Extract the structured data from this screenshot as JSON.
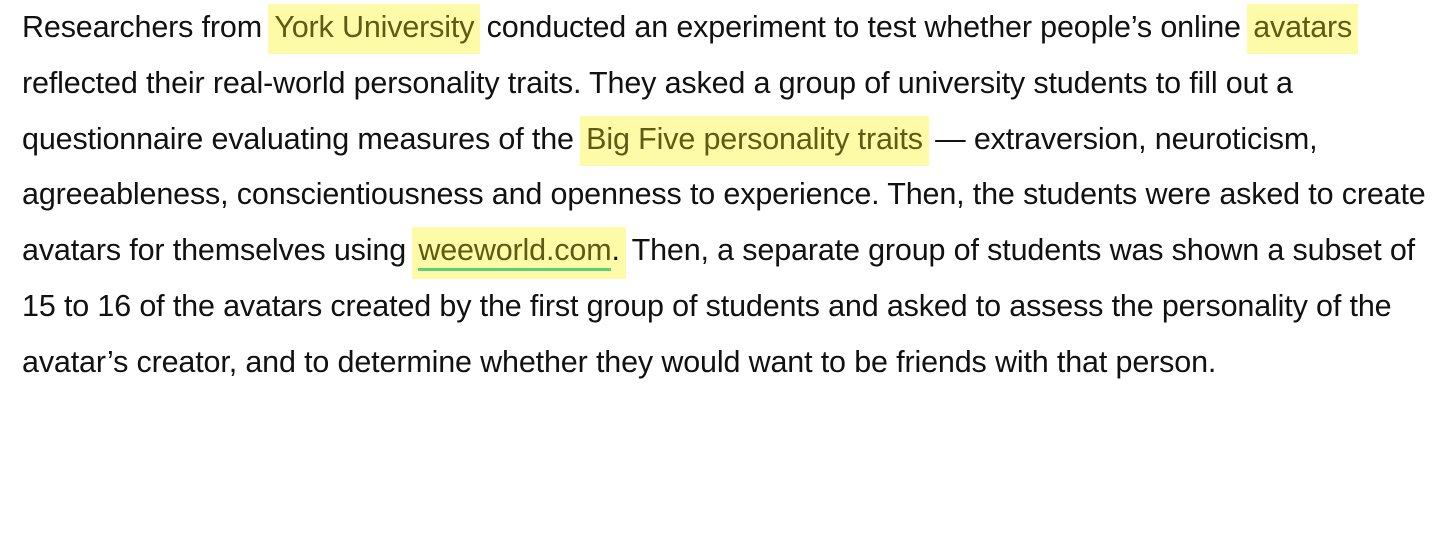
{
  "article": {
    "s1_before": "Researchers from ",
    "hl_york": "York University",
    "s1_after": " conducted an experiment to test whether people’s online ",
    "hl_avatars": "avatars",
    "s2": " reflected their real-world personality traits. They asked a group of university students to fill out a questionnaire evaluating measures of the ",
    "hl_bigfive": "Big Five personality traits",
    "s3": " — extraversion, neuroticism, agreeableness, conscientiousness and openness to experience. Then, the students were asked to create avatars for themselves using ",
    "link_weeworld": "weeworld.com",
    "s4_dot": ".",
    "s4": " Then, a separate group of students was shown a subset of 15 to 16 of the avatars created by the first group of students and asked to assess the personality of the avatar’s creator, and to determine whether they would want to be friends with that person."
  },
  "colors": {
    "highlight_bg": "#fdfba8",
    "highlight_text": "#5f5b12",
    "link_underline": "#5fcf76",
    "body_text": "#111111"
  }
}
